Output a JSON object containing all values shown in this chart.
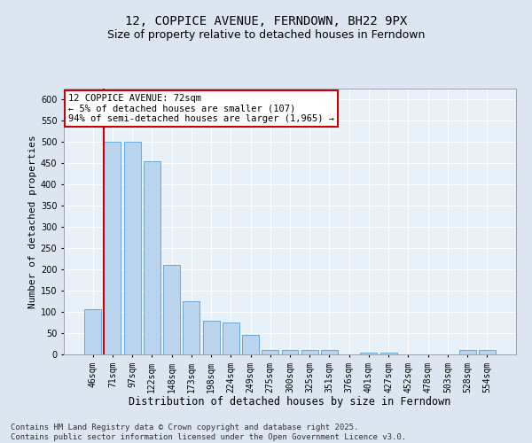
{
  "title": "12, COPPICE AVENUE, FERNDOWN, BH22 9PX",
  "subtitle": "Size of property relative to detached houses in Ferndown",
  "xlabel": "Distribution of detached houses by size in Ferndown",
  "ylabel": "Number of detached properties",
  "categories": [
    "46sqm",
    "71sqm",
    "97sqm",
    "122sqm",
    "148sqm",
    "173sqm",
    "198sqm",
    "224sqm",
    "249sqm",
    "275sqm",
    "300sqm",
    "325sqm",
    "351sqm",
    "376sqm",
    "401sqm",
    "427sqm",
    "452sqm",
    "478sqm",
    "503sqm",
    "528sqm",
    "554sqm"
  ],
  "values": [
    107,
    500,
    500,
    455,
    210,
    125,
    80,
    75,
    45,
    10,
    10,
    10,
    10,
    0,
    5,
    5,
    0,
    0,
    0,
    10,
    10
  ],
  "bar_color": "#bad4ee",
  "bar_edge_color": "#5a9fd4",
  "vline_color": "#cc0000",
  "vline_pos": 0.575,
  "ylim": [
    0,
    625
  ],
  "yticks": [
    0,
    50,
    100,
    150,
    200,
    250,
    300,
    350,
    400,
    450,
    500,
    550,
    600
  ],
  "annotation_text": "12 COPPICE AVENUE: 72sqm\n← 5% of detached houses are smaller (107)\n94% of semi-detached houses are larger (1,965) →",
  "annotation_box_facecolor": "#ffffff",
  "annotation_box_edgecolor": "#cc0000",
  "footer": "Contains HM Land Registry data © Crown copyright and database right 2025.\nContains public sector information licensed under the Open Government Licence v3.0.",
  "bg_color": "#dce6f0",
  "plot_bg_color": "#e8f0f8",
  "grid_color": "#ffffff",
  "title_fontsize": 10,
  "subtitle_fontsize": 9,
  "xlabel_fontsize": 8.5,
  "ylabel_fontsize": 8,
  "tick_fontsize": 7,
  "footer_fontsize": 6.5,
  "annot_fontsize": 7.5
}
